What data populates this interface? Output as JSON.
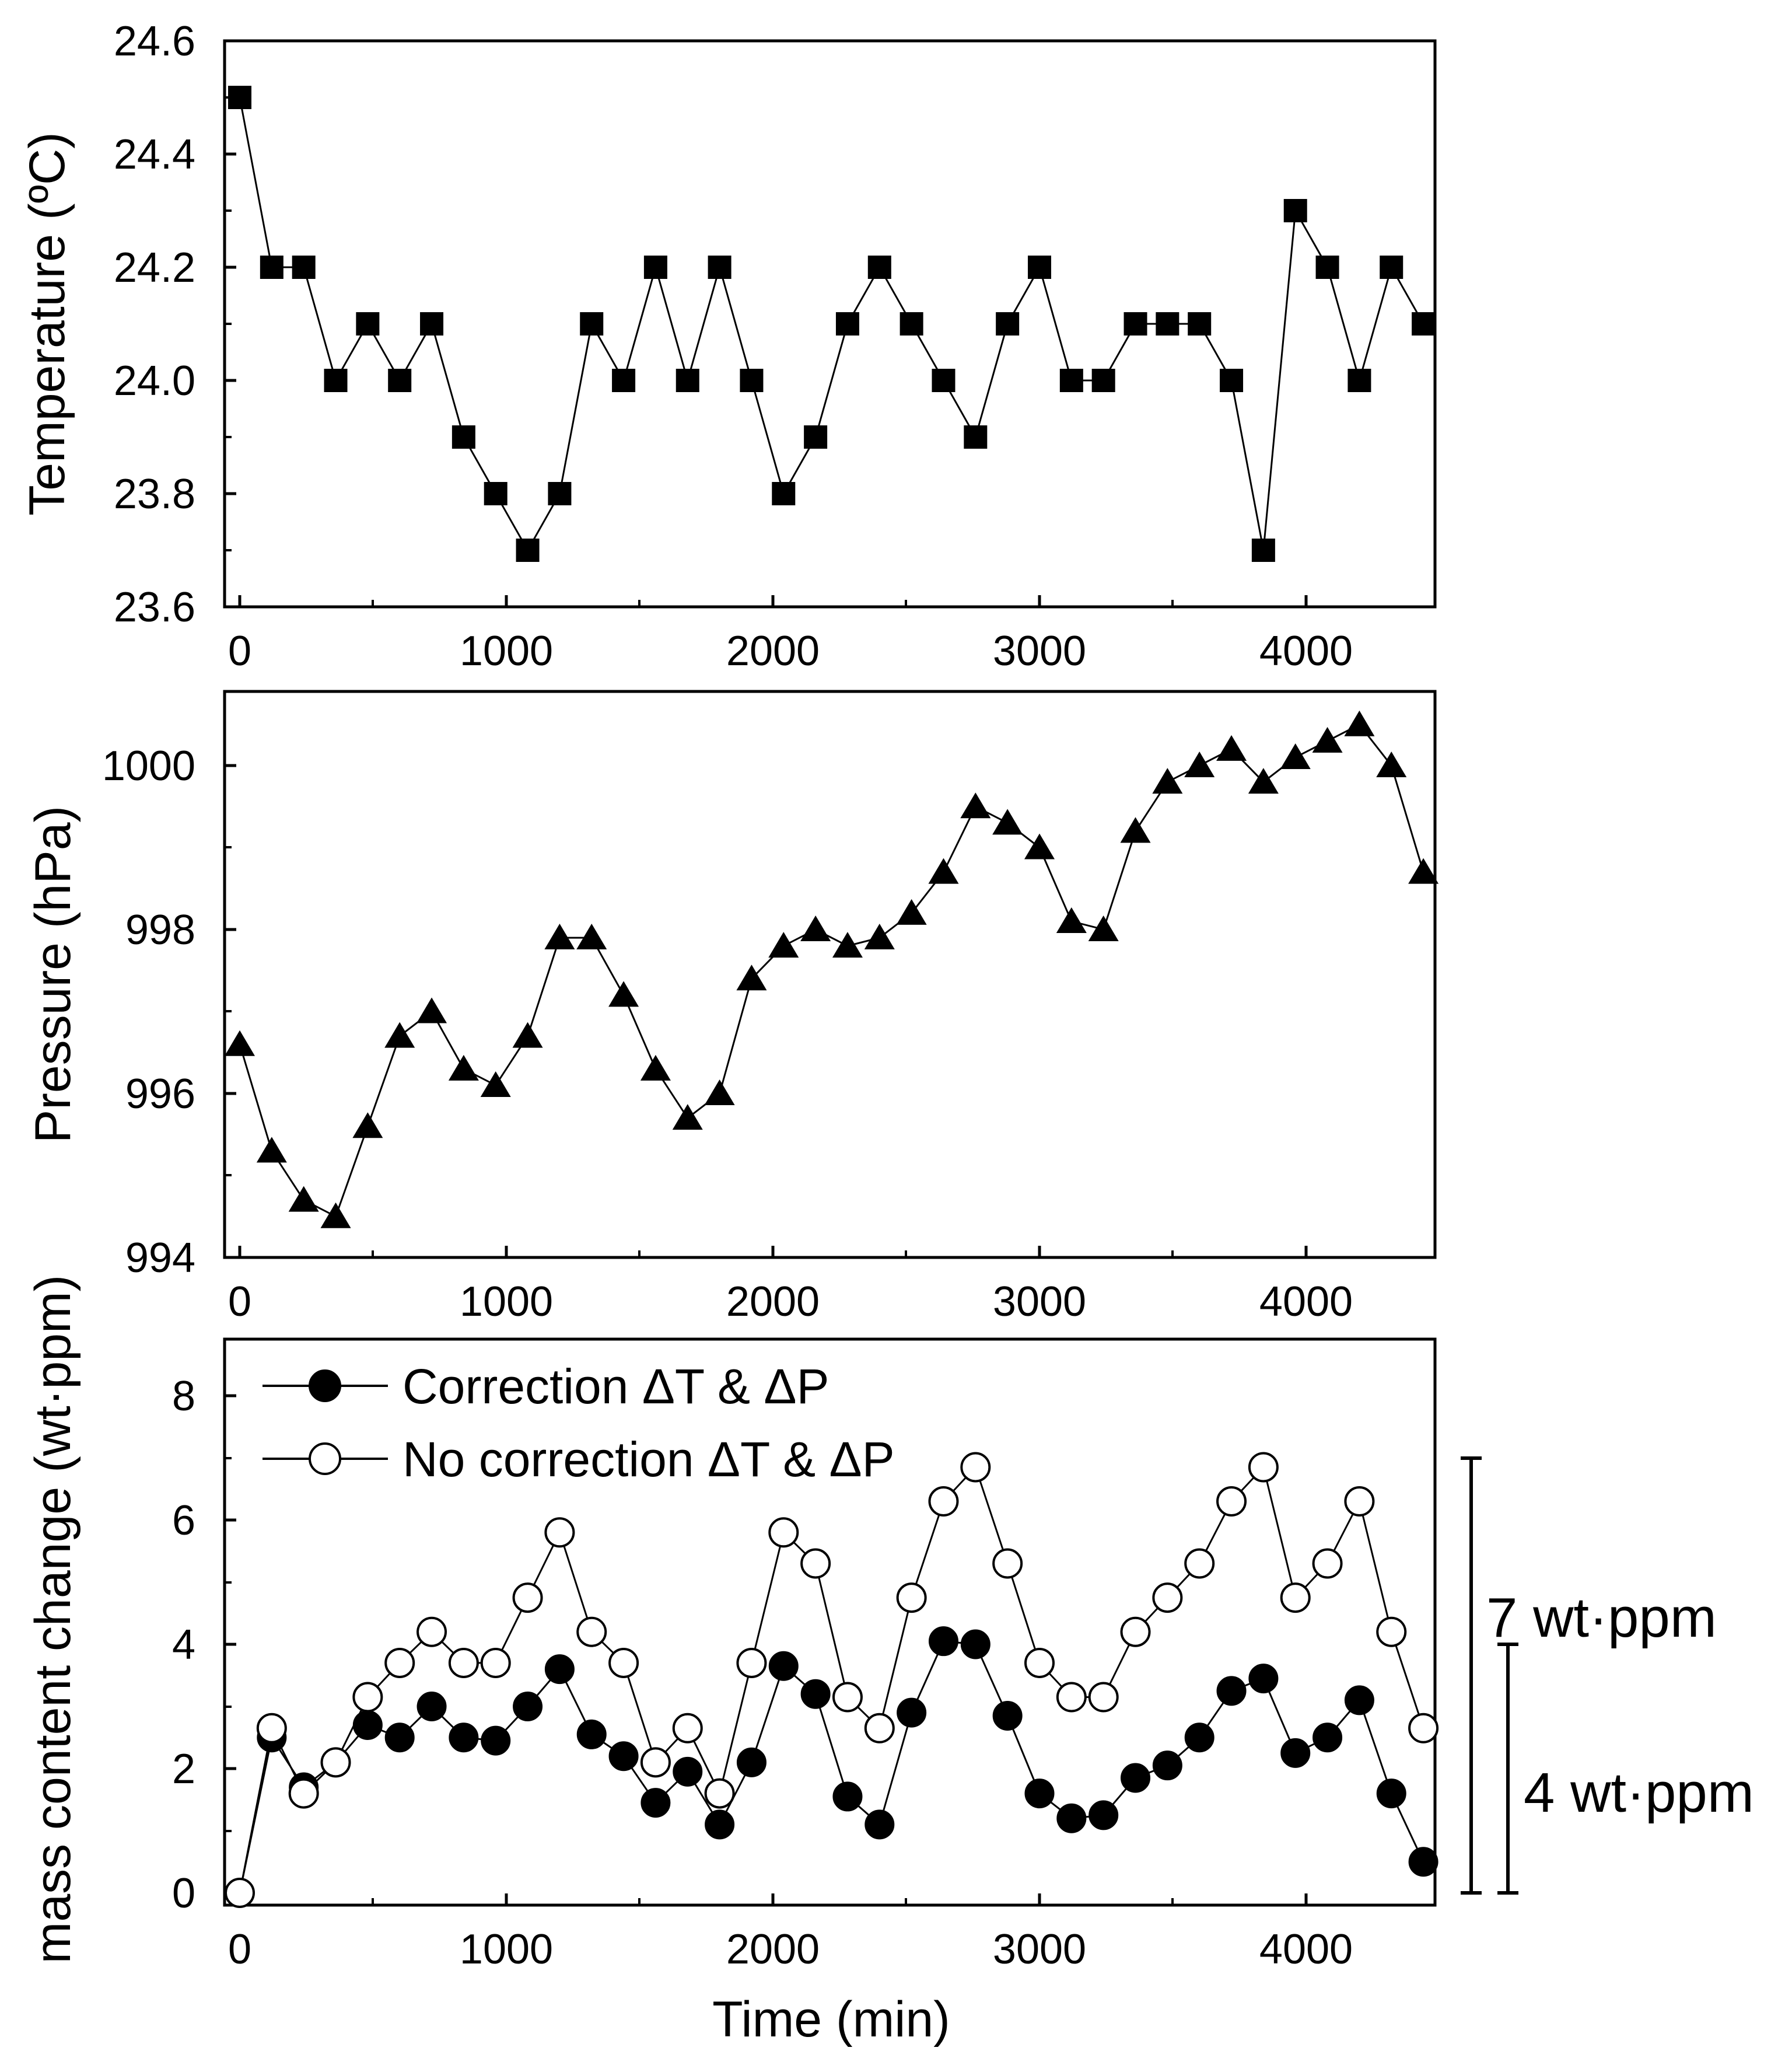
{
  "chart_data": [
    {
      "type": "line",
      "ylabel": "Temperature (ºC)",
      "xlabel": "",
      "xlim": [
        -60,
        4480
      ],
      "ylim": [
        23.6,
        24.6
      ],
      "x_ticks": [
        "0",
        "1000",
        "2000",
        "3000",
        "4000"
      ],
      "y_ticks": [
        "23.6",
        "23.8",
        "24.0",
        "24.2",
        "24.4",
        "24.6"
      ],
      "series": [
        {
          "marker": "filled-square",
          "x": [
            0,
            120,
            240,
            360,
            480,
            600,
            720,
            840,
            960,
            1080,
            1200,
            1320,
            1440,
            1560,
            1680,
            1800,
            1920,
            2040,
            2160,
            2280,
            2400,
            2520,
            2640,
            2760,
            2880,
            3000,
            3120,
            3240,
            3360,
            3480,
            3600,
            3720,
            3840,
            3960,
            4080,
            4200,
            4320,
            4440
          ],
          "y": [
            24.5,
            24.2,
            24.2,
            24.0,
            24.1,
            24.0,
            24.1,
            23.9,
            23.8,
            23.7,
            23.8,
            24.1,
            24.0,
            24.2,
            24.0,
            24.2,
            24.0,
            23.8,
            23.9,
            24.1,
            24.2,
            24.1,
            24.0,
            23.9,
            24.1,
            24.2,
            24.0,
            24.0,
            24.1,
            24.1,
            24.1,
            24.0,
            23.7,
            24.3,
            24.2,
            24.0,
            24.2,
            24.1
          ]
        }
      ]
    },
    {
      "type": "line",
      "ylabel": "Pressure (hPa)",
      "xlabel": "",
      "xlim": [
        -60,
        4480
      ],
      "ylim": [
        994,
        1000.9
      ],
      "x_ticks": [
        "0",
        "1000",
        "2000",
        "3000",
        "4000"
      ],
      "y_ticks": [
        "994",
        "996",
        "998",
        "1000"
      ],
      "series": [
        {
          "marker": "filled-triangle",
          "x": [
            0,
            120,
            240,
            360,
            480,
            600,
            720,
            840,
            960,
            1080,
            1200,
            1320,
            1440,
            1560,
            1680,
            1800,
            1920,
            2040,
            2160,
            2280,
            2400,
            2520,
            2640,
            2760,
            2880,
            3000,
            3120,
            3240,
            3360,
            3480,
            3600,
            3720,
            3840,
            3960,
            4080,
            4200,
            4320,
            4440
          ],
          "y": [
            996.6,
            995.3,
            994.7,
            994.5,
            995.6,
            996.7,
            997.0,
            996.3,
            996.1,
            996.7,
            997.9,
            997.9,
            997.2,
            996.3,
            995.7,
            996.0,
            997.4,
            997.8,
            998.0,
            997.8,
            997.9,
            998.2,
            998.7,
            999.5,
            999.3,
            999.0,
            998.1,
            998.0,
            999.2,
            999.8,
            1000.0,
            1000.2,
            999.8,
            1000.1,
            1000.3,
            1000.5,
            1000.0,
            998.7
          ]
        }
      ]
    },
    {
      "type": "line",
      "ylabel": "mass content change (wt·ppm)",
      "xlabel": "Time (min)",
      "xlim": [
        -60,
        4480
      ],
      "ylim": [
        -0.2,
        8.9
      ],
      "x_ticks": [
        "0",
        "1000",
        "2000",
        "3000",
        "4000"
      ],
      "y_ticks": [
        "0",
        "2",
        "4",
        "6",
        "8"
      ],
      "legend_position": "top-left",
      "series": [
        {
          "name": "Correction ΔT & ΔP",
          "marker": "filled-circle",
          "x": [
            0,
            120,
            240,
            360,
            480,
            600,
            720,
            840,
            960,
            1080,
            1200,
            1320,
            1440,
            1560,
            1680,
            1800,
            1920,
            2040,
            2160,
            2280,
            2400,
            2520,
            2640,
            2760,
            2880,
            3000,
            3120,
            3240,
            3360,
            3480,
            3600,
            3720,
            3840,
            3960,
            4080,
            4200,
            4320,
            4440
          ],
          "y": [
            0.0,
            2.5,
            1.7,
            2.1,
            2.7,
            2.5,
            3.0,
            2.5,
            2.45,
            3.0,
            3.6,
            2.55,
            2.2,
            1.45,
            1.95,
            1.1,
            2.1,
            3.65,
            3.2,
            1.55,
            1.1,
            2.9,
            4.05,
            4.0,
            2.85,
            1.6,
            1.2,
            1.25,
            1.85,
            2.05,
            2.5,
            3.25,
            3.45,
            2.25,
            2.5,
            3.1,
            1.6,
            0.5
          ]
        },
        {
          "name": "No correction ΔT & ΔP",
          "marker": "open-circle",
          "x": [
            0,
            120,
            240,
            360,
            480,
            600,
            720,
            840,
            960,
            1080,
            1200,
            1320,
            1440,
            1560,
            1680,
            1800,
            1920,
            2040,
            2160,
            2280,
            2400,
            2520,
            2640,
            2760,
            2880,
            3000,
            3120,
            3240,
            3360,
            3480,
            3600,
            3720,
            3840,
            3960,
            4080,
            4200,
            4320,
            4440
          ],
          "y": [
            0.0,
            2.65,
            1.6,
            2.1,
            3.15,
            3.7,
            4.2,
            3.7,
            3.7,
            4.75,
            5.8,
            4.2,
            3.7,
            2.1,
            2.65,
            1.6,
            3.7,
            5.8,
            5.3,
            3.15,
            2.65,
            4.75,
            6.3,
            6.85,
            5.3,
            3.7,
            3.15,
            3.15,
            4.2,
            4.75,
            5.3,
            6.3,
            6.85,
            4.75,
            5.3,
            6.3,
            4.2,
            2.65
          ]
        }
      ],
      "annotations": [
        {
          "text": "7 wt·ppm",
          "range": [
            0,
            7
          ]
        },
        {
          "text": "4 wt·ppm",
          "range": [
            0,
            4
          ]
        }
      ]
    }
  ]
}
